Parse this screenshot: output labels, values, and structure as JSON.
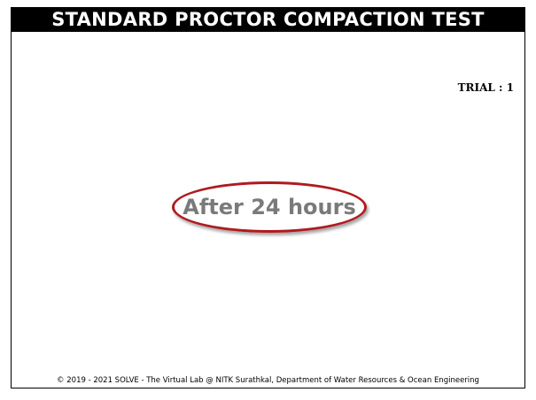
{
  "header": {
    "title": "STANDARD PROCTOR COMPACTION TEST"
  },
  "trial": {
    "label": "TRIAL : 1"
  },
  "status": {
    "message": "After 24 hours"
  },
  "footer": {
    "copyright": "© 2019 - 2021 SOLVE - The Virtual Lab @ NITK Surathkal, Department of Water Resources & Ocean Engineering"
  },
  "colors": {
    "title_background": "#000000",
    "title_text": "#ffffff",
    "ellipse_border": "#b01a1f",
    "message_text": "#7a7a7a"
  }
}
